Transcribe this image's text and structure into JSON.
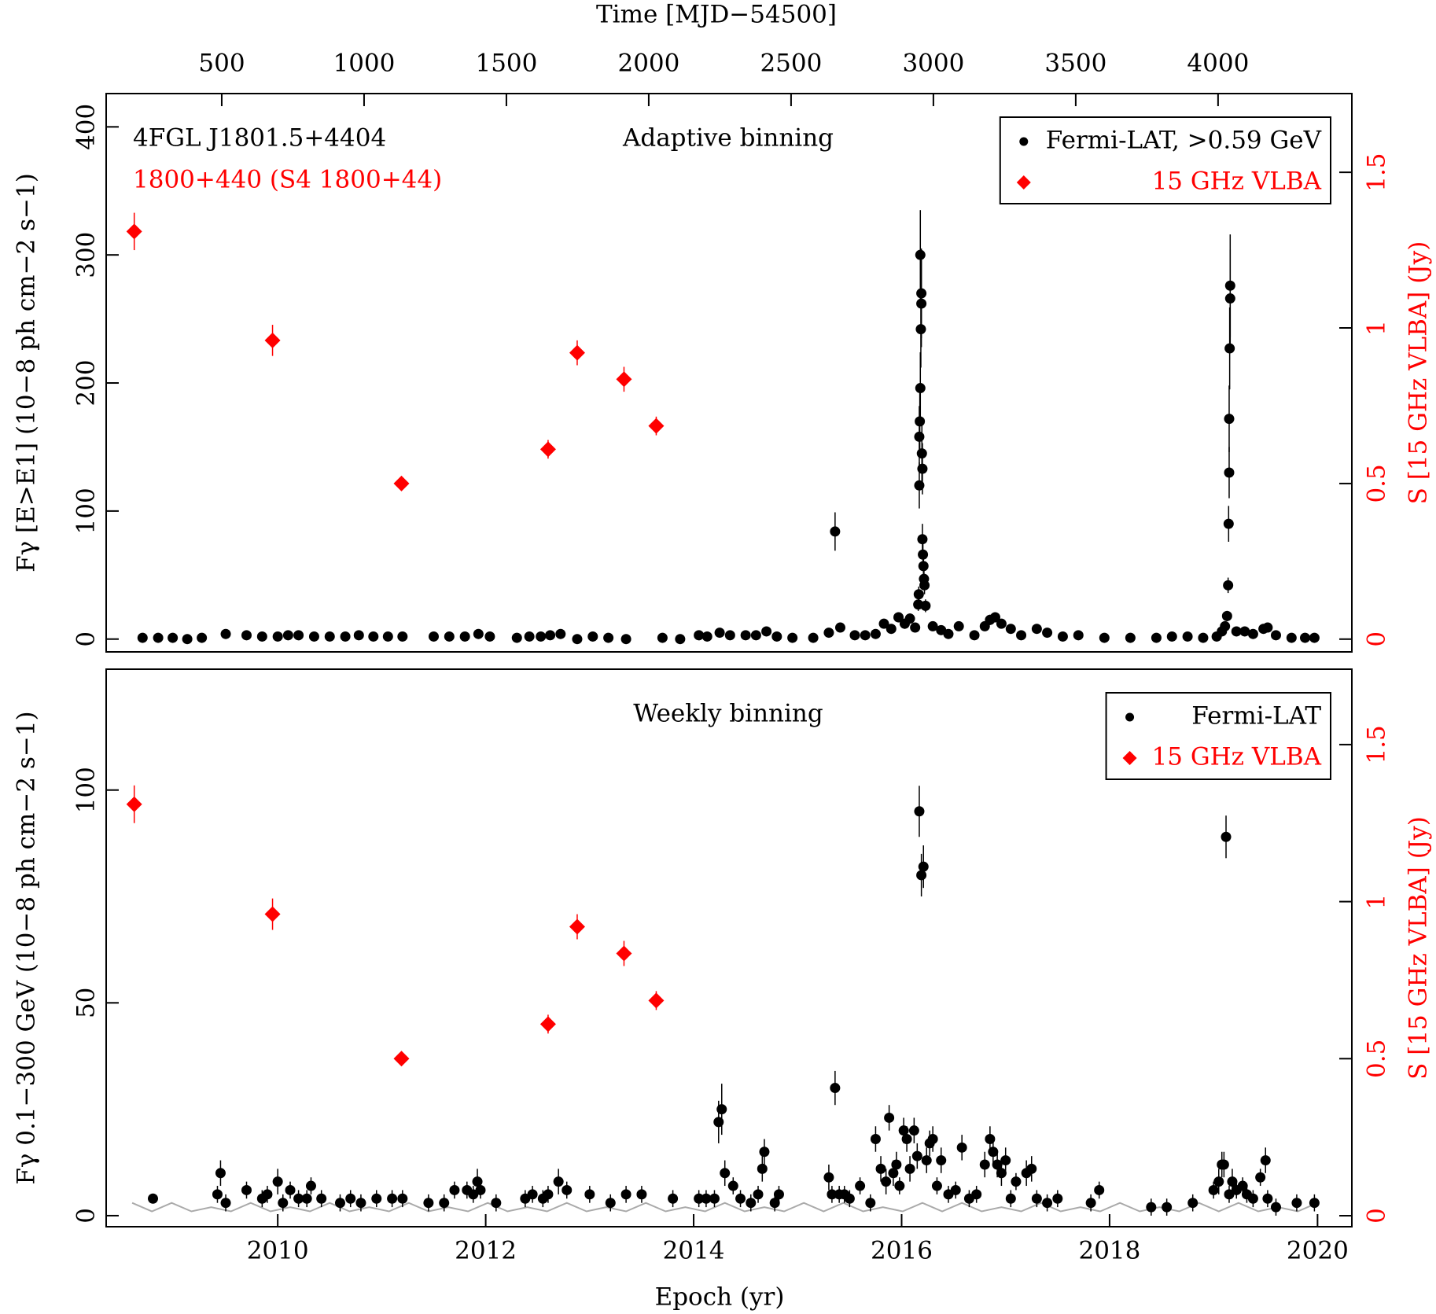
{
  "chart_data": [
    {
      "type": "scatter",
      "title": "Adaptive binning",
      "annotations": [
        {
          "text": "4FGL J1801.5+4404",
          "color": "#000000"
        },
        {
          "text": "1800+440 (S4 1800+44)",
          "color": "#ff0000"
        }
      ],
      "ylabel": "Fγ [E>E1] (10−8 ph cm−2 s−1)",
      "y2label": "S [15 GHz VLBA] (Jy)",
      "y2color": "#ff0000",
      "x2label": "Time [MJD−54500]",
      "xlim": [
        2008.35,
        2020.33
      ],
      "x2lim": [
        94,
        4470
      ],
      "x2ticks": [
        500,
        1000,
        1500,
        2000,
        2500,
        3000,
        3500,
        4000
      ],
      "ylim": [
        -10,
        426
      ],
      "yticks": [
        0,
        100,
        200,
        300,
        400
      ],
      "y2lim": [
        -0.041,
        1.753
      ],
      "y2ticks": [
        0,
        0.5,
        1,
        1.5
      ],
      "legend": "upper right",
      "series": [
        {
          "name": "Fermi-LAT, >0.59 GeV",
          "color": "#000000",
          "marker": "circle",
          "x": [
            2008.7,
            2008.85,
            2008.99,
            2009.13,
            2009.27,
            2009.5,
            2009.7,
            2009.85,
            2010.0,
            2010.1,
            2010.2,
            2010.35,
            2010.5,
            2010.65,
            2010.78,
            2010.92,
            2011.06,
            2011.2,
            2011.5,
            2011.65,
            2011.8,
            2011.93,
            2012.04,
            2012.3,
            2012.42,
            2012.53,
            2012.62,
            2012.72,
            2012.88,
            2013.03,
            2013.18,
            2013.35,
            2013.7,
            2013.87,
            2014.05,
            2014.13,
            2014.25,
            2014.35,
            2014.5,
            2014.6,
            2014.7,
            2014.8,
            2014.95,
            2015.15,
            2015.3,
            2015.36,
            2015.41,
            2015.55,
            2015.65,
            2015.75,
            2015.83,
            2015.9,
            2015.97,
            2016.03,
            2016.08,
            2016.13,
            2016.16,
            2016.165,
            2016.17,
            2016.17,
            2016.175,
            2016.18,
            2016.18,
            2016.185,
            2016.19,
            2016.19,
            2016.195,
            2016.2,
            2016.2,
            2016.205,
            2016.21,
            2016.215,
            2016.22,
            2016.23,
            2016.3,
            2016.38,
            2016.45,
            2016.55,
            2016.7,
            2016.8,
            2016.85,
            2016.9,
            2016.96,
            2017.05,
            2017.15,
            2017.3,
            2017.4,
            2017.55,
            2017.7,
            2017.95,
            2018.2,
            2018.45,
            2018.6,
            2018.75,
            2018.9,
            2019.03,
            2019.08,
            2019.11,
            2019.13,
            2019.14,
            2019.145,
            2019.15,
            2019.15,
            2019.155,
            2019.16,
            2019.16,
            2019.22,
            2019.3,
            2019.38,
            2019.48,
            2019.52,
            2019.6,
            2019.75,
            2019.88,
            2019.97
          ],
          "values": [
            1,
            1,
            1,
            0,
            1,
            4,
            3,
            2,
            2,
            3,
            3,
            2,
            2,
            2,
            3,
            2,
            2,
            2,
            2,
            2,
            2,
            4,
            2,
            1,
            2,
            2,
            3,
            4,
            0,
            2,
            1,
            0,
            1,
            0,
            3,
            2,
            5,
            3,
            3,
            3,
            6,
            2,
            1,
            1,
            5,
            84,
            9,
            3,
            3,
            4,
            12,
            8,
            17,
            12,
            16,
            9,
            27,
            35,
            120,
            158,
            170,
            300,
            196,
            242,
            270,
            262,
            145,
            133,
            78,
            66,
            57,
            47,
            42,
            26,
            10,
            7,
            4,
            10,
            3,
            10,
            15,
            17,
            12,
            8,
            3,
            8,
            5,
            2,
            3,
            1,
            1,
            1,
            2,
            2,
            1,
            2,
            6,
            10,
            18,
            42,
            90,
            130,
            172,
            227,
            266,
            276,
            6,
            6,
            4,
            8,
            9,
            3,
            1,
            1,
            1
          ],
          "errors": [
            1,
            1,
            1,
            1,
            1,
            1,
            1,
            1,
            1,
            1,
            1,
            1,
            1,
            1,
            1,
            1,
            1,
            1,
            1,
            1,
            1,
            1,
            1,
            1,
            1,
            1,
            1,
            1,
            1,
            1,
            1,
            1,
            1,
            1,
            1,
            1,
            1,
            1,
            1,
            1,
            2,
            1,
            1,
            1,
            2,
            15,
            3,
            1,
            1,
            2,
            3,
            3,
            4,
            4,
            4,
            3,
            5,
            6,
            18,
            24,
            25,
            35,
            28,
            30,
            35,
            34,
            22,
            20,
            12,
            10,
            9,
            8,
            7,
            5,
            3,
            2,
            2,
            3,
            1,
            3,
            4,
            4,
            3,
            3,
            1,
            2,
            2,
            1,
            1,
            1,
            1,
            1,
            1,
            1,
            1,
            1,
            2,
            3,
            4,
            6,
            14,
            20,
            26,
            32,
            38,
            40,
            2,
            2,
            2,
            2,
            3,
            1,
            1,
            1,
            1
          ]
        },
        {
          "name": "15 GHz VLBA",
          "color": "#ff0000",
          "marker": "diamond",
          "axis": "y2",
          "x": [
            2008.62,
            2009.95,
            2011.19,
            2012.6,
            2012.88,
            2013.33,
            2013.64
          ],
          "values": [
            1.31,
            0.96,
            0.5,
            0.61,
            0.92,
            0.835,
            0.685
          ],
          "errors": [
            0.06,
            0.05,
            0.02,
            0.03,
            0.04,
            0.04,
            0.03
          ]
        }
      ]
    },
    {
      "type": "scatter",
      "title": "Weekly binning",
      "ylabel": "Fγ 0.1−300 GeV (10−8 ph cm−2 s−1)",
      "y2label": "S [15 GHz VLBA] (Jy)",
      "y2color": "#ff0000",
      "xlabel": "Epoch (yr)",
      "xlim": [
        2008.35,
        2020.33
      ],
      "xticks": [
        2010,
        2012,
        2014,
        2016,
        2018,
        2020
      ],
      "ylim": [
        -2.6,
        128.4
      ],
      "yticks": [
        0,
        50,
        100
      ],
      "y2lim": [
        -0.035,
        1.74
      ],
      "y2ticks": [
        0,
        0.5,
        1,
        1.5
      ],
      "legend": "upper right",
      "series": [
        {
          "color": "#aaaaaa",
          "marker": "line",
          "x": [
            2008.6,
            2008.79,
            2008.98,
            2009.17,
            2009.36,
            2009.55,
            2009.74,
            2009.93,
            2010.12,
            2010.31,
            2010.5,
            2010.69,
            2010.88,
            2011.07,
            2011.26,
            2011.45,
            2011.64,
            2011.83,
            2012.02,
            2012.21,
            2012.4,
            2012.59,
            2012.78,
            2012.97,
            2013.16,
            2013.35,
            2013.54,
            2013.73,
            2013.92,
            2014.11,
            2014.3,
            2014.49,
            2014.68,
            2014.87,
            2015.06,
            2015.25,
            2015.44,
            2015.63,
            2015.82,
            2016.01,
            2016.2,
            2016.39,
            2016.58,
            2016.77,
            2016.96,
            2017.15,
            2017.34,
            2017.53,
            2017.72,
            2017.91,
            2018.1,
            2018.29,
            2018.48,
            2018.67,
            2018.86,
            2019.05,
            2019.24,
            2019.43,
            2019.62,
            2019.81,
            2020.0
          ],
          "values": [
            3,
            1,
            3,
            1,
            2,
            1,
            3,
            1,
            2,
            1,
            3,
            1,
            2,
            1,
            3,
            1,
            2,
            1,
            3,
            1,
            2,
            1,
            3,
            1,
            2,
            1,
            3,
            1,
            2,
            1,
            3,
            1,
            2,
            1,
            3,
            1,
            3,
            1,
            2,
            1,
            3,
            1,
            3,
            1,
            2,
            1,
            3,
            1,
            2,
            1,
            3,
            1,
            2,
            1,
            3,
            1,
            3,
            1,
            2,
            1,
            3
          ]
        },
        {
          "name": "Fermi-LAT",
          "color": "#000000",
          "marker": "circle",
          "x": [
            2008.8,
            2009.42,
            2009.45,
            2009.5,
            2009.7,
            2009.85,
            2009.9,
            2010.0,
            2010.05,
            2010.12,
            2010.2,
            2010.28,
            2010.32,
            2010.42,
            2010.6,
            2010.7,
            2010.8,
            2010.95,
            2011.1,
            2011.2,
            2011.45,
            2011.6,
            2011.7,
            2011.82,
            2011.88,
            2011.92,
            2011.95,
            2012.1,
            2012.38,
            2012.45,
            2012.55,
            2012.6,
            2012.7,
            2012.78,
            2013.0,
            2013.2,
            2013.35,
            2013.5,
            2013.8,
            2014.05,
            2014.12,
            2014.2,
            2014.24,
            2014.27,
            2014.3,
            2014.38,
            2014.45,
            2014.55,
            2014.62,
            2014.66,
            2014.68,
            2014.78,
            2014.82,
            2015.3,
            2015.33,
            2015.36,
            2015.4,
            2015.45,
            2015.5,
            2015.6,
            2015.7,
            2015.75,
            2015.8,
            2015.85,
            2015.88,
            2015.92,
            2015.95,
            2015.98,
            2016.02,
            2016.05,
            2016.08,
            2016.12,
            2016.15,
            2016.17,
            2016.19,
            2016.21,
            2016.24,
            2016.27,
            2016.3,
            2016.34,
            2016.38,
            2016.45,
            2016.52,
            2016.58,
            2016.65,
            2016.72,
            2016.8,
            2016.85,
            2016.88,
            2016.92,
            2016.96,
            2017.0,
            2017.05,
            2017.1,
            2017.2,
            2017.25,
            2017.3,
            2017.4,
            2017.5,
            2017.82,
            2017.9,
            2018.4,
            2018.55,
            2018.8,
            2019.0,
            2019.05,
            2019.08,
            2019.1,
            2019.12,
            2019.15,
            2019.18,
            2019.22,
            2019.28,
            2019.32,
            2019.38,
            2019.45,
            2019.5,
            2019.52,
            2019.6,
            2019.8,
            2019.97
          ],
          "values": [
            4,
            5,
            10,
            3,
            6,
            4,
            5,
            8,
            3,
            6,
            4,
            4,
            7,
            4,
            3,
            4,
            3,
            4,
            4,
            4,
            3,
            3,
            6,
            6,
            5,
            8,
            6,
            3,
            4,
            5,
            4,
            5,
            8,
            6,
            5,
            3,
            5,
            5,
            4,
            4,
            4,
            4,
            22,
            25,
            10,
            7,
            4,
            3,
            5,
            11,
            15,
            3,
            5,
            9,
            5,
            30,
            5,
            5,
            4,
            7,
            3,
            18,
            11,
            8,
            23,
            10,
            12,
            7,
            20,
            18,
            11,
            20,
            14,
            95,
            80,
            82,
            13,
            17,
            18,
            7,
            13,
            5,
            6,
            16,
            4,
            5,
            12,
            18,
            15,
            12,
            10,
            13,
            4,
            8,
            10,
            11,
            4,
            3,
            4,
            3,
            6,
            2,
            2,
            3,
            6,
            8,
            12,
            12,
            89,
            5,
            8,
            6,
            7,
            5,
            4,
            9,
            13,
            4,
            2,
            3,
            3
          ],
          "errors": [
            1,
            2,
            3,
            2,
            2,
            2,
            2,
            3,
            2,
            2,
            2,
            2,
            2,
            2,
            2,
            2,
            2,
            2,
            2,
            2,
            2,
            2,
            2,
            2,
            2,
            3,
            2,
            2,
            2,
            2,
            2,
            2,
            3,
            2,
            2,
            2,
            2,
            2,
            2,
            2,
            2,
            2,
            5,
            6,
            3,
            2,
            2,
            2,
            2,
            3,
            3,
            2,
            2,
            3,
            2,
            4,
            2,
            2,
            2,
            2,
            2,
            3,
            3,
            3,
            3,
            3,
            3,
            2,
            3,
            3,
            3,
            3,
            3,
            6,
            5,
            5,
            3,
            3,
            3,
            2,
            3,
            2,
            2,
            3,
            2,
            2,
            3,
            3,
            3,
            3,
            3,
            3,
            2,
            2,
            3,
            3,
            2,
            2,
            2,
            2,
            2,
            2,
            2,
            2,
            2,
            3,
            3,
            3,
            5,
            2,
            3,
            2,
            2,
            2,
            2,
            2,
            3,
            2,
            2,
            2,
            2
          ]
        },
        {
          "name": "15 GHz VLBA",
          "color": "#ff0000",
          "marker": "diamond",
          "axis": "y2",
          "x": [
            2008.62,
            2009.95,
            2011.19,
            2012.6,
            2012.88,
            2013.33,
            2013.64
          ],
          "values": [
            1.31,
            0.96,
            0.5,
            0.61,
            0.92,
            0.835,
            0.685
          ],
          "errors": [
            0.06,
            0.05,
            0.02,
            0.03,
            0.04,
            0.04,
            0.03
          ]
        }
      ]
    }
  ]
}
